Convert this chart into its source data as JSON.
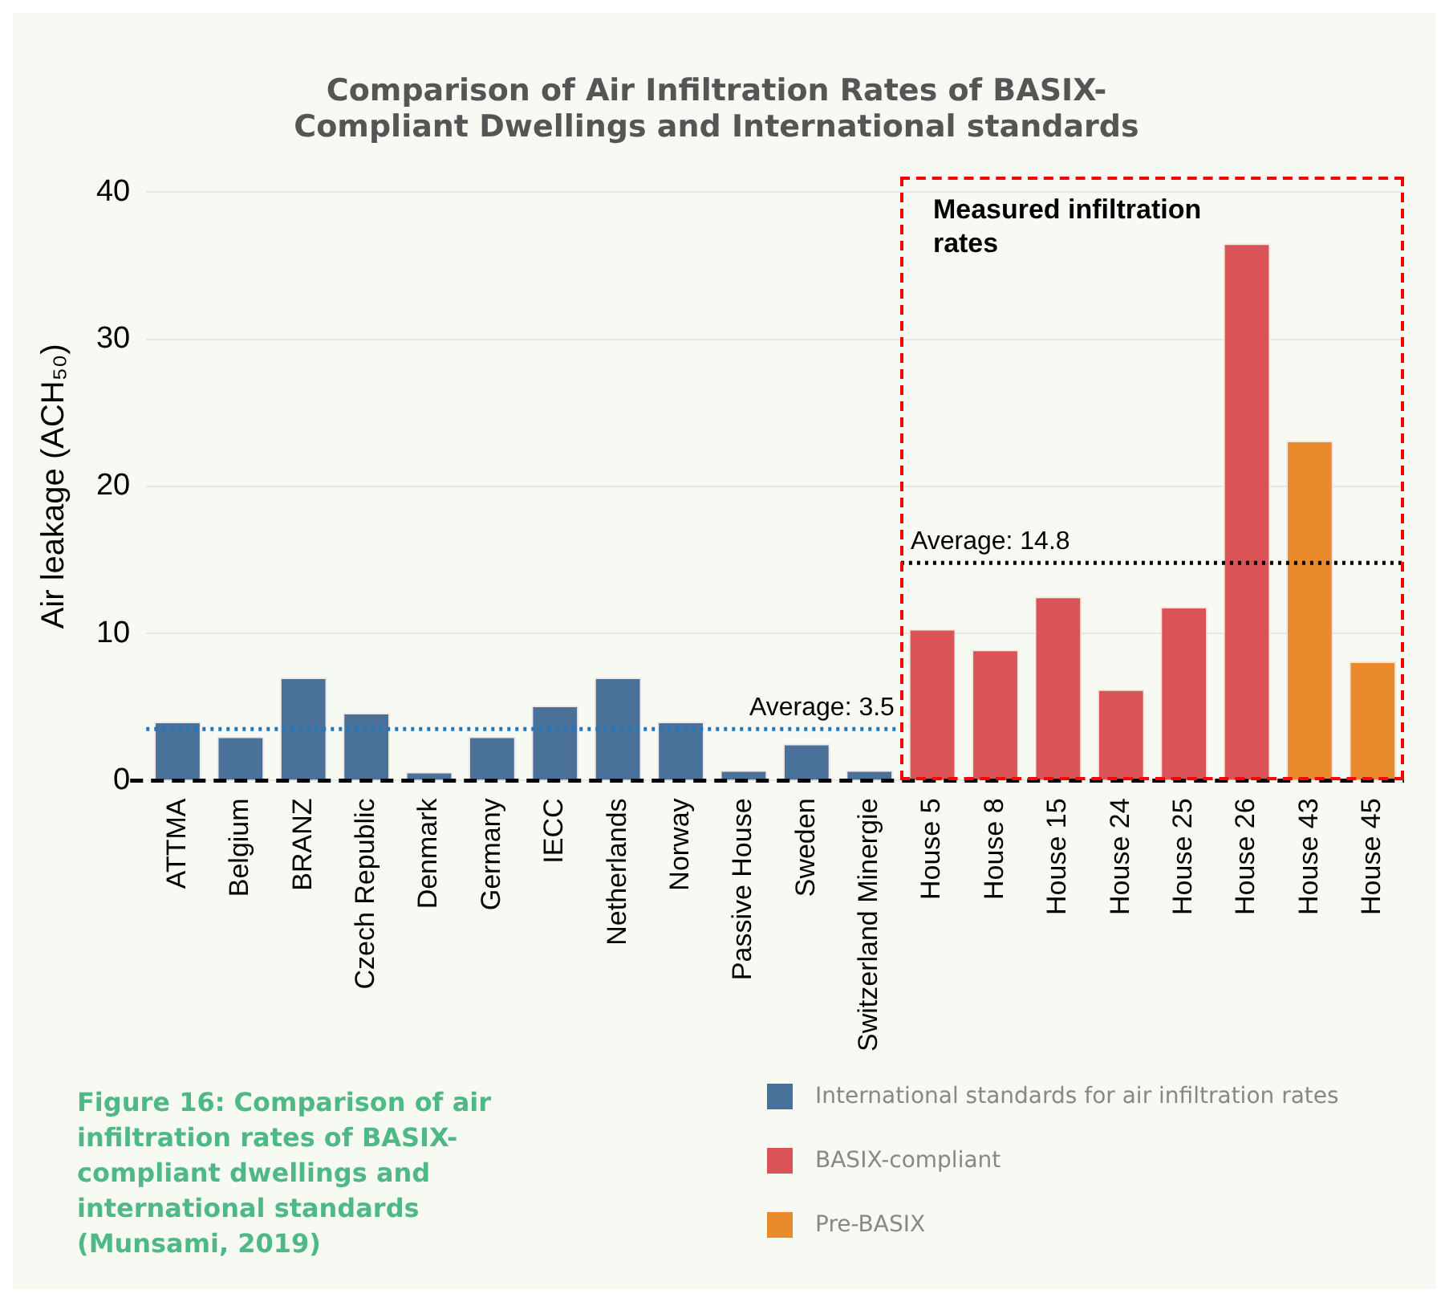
{
  "chart_data": {
    "type": "bar",
    "title": "Comparison of Air Infiltration Rates of BASIX-\nCompliant Dwellings and International standards",
    "ylabel": "Air leakage (ACH₅₀)",
    "categories": [
      "ATTMA",
      "Belgium",
      "BRANZ",
      "Czech Republic",
      "Denmark",
      "Germany",
      "IECC",
      "Netherlands",
      "Norway",
      "Passive House",
      "Sweden",
      "Switzerland Minergie",
      "House 5",
      "House 8",
      "House 15",
      "House 24",
      "House 25",
      "House 26",
      "House 43",
      "House 45"
    ],
    "series": [
      {
        "name": "International standards for air infiltration rates",
        "color": "#4a7199",
        "values": [
          4,
          3,
          7,
          4.6,
          0.6,
          3,
          5.1,
          7,
          4,
          0.7,
          2.5,
          0.7,
          null,
          null,
          null,
          null,
          null,
          null,
          null,
          null
        ]
      },
      {
        "name": "BASIX-compliant",
        "color": "#d95357",
        "values": [
          null,
          null,
          null,
          null,
          null,
          null,
          null,
          null,
          null,
          null,
          null,
          null,
          10.3,
          8.9,
          12.5,
          6.2,
          11.8,
          36.5,
          null,
          null
        ]
      },
      {
        "name": "Pre-BASIX",
        "color": "#e98b2c",
        "values": [
          null,
          null,
          null,
          null,
          null,
          null,
          null,
          null,
          null,
          null,
          null,
          null,
          null,
          null,
          null,
          null,
          null,
          null,
          23.1,
          8.1
        ]
      }
    ],
    "ylim": [
      0,
      40
    ],
    "yticks": [
      0,
      10,
      20,
      30,
      40
    ],
    "grid": "y",
    "legend": "bottom right",
    "ref_lines": [
      {
        "axis": "y",
        "value": 0,
        "color": "#000000",
        "line_style": "dashed"
      },
      {
        "axis": "y",
        "value": 3.5,
        "label": "Average: 3.5",
        "color": "#1f78c0",
        "line_style": "dotted"
      },
      {
        "axis": "y",
        "value": 14.8,
        "label": "Average: 14.8",
        "color": "#000000",
        "line_style": "dotted"
      }
    ],
    "annotations": [
      "Measured infiltration rates",
      "Figure 16: Comparison of air infiltration rates of BASIX-compliant dwellings and international standards (Munsami, 2019)"
    ]
  }
}
